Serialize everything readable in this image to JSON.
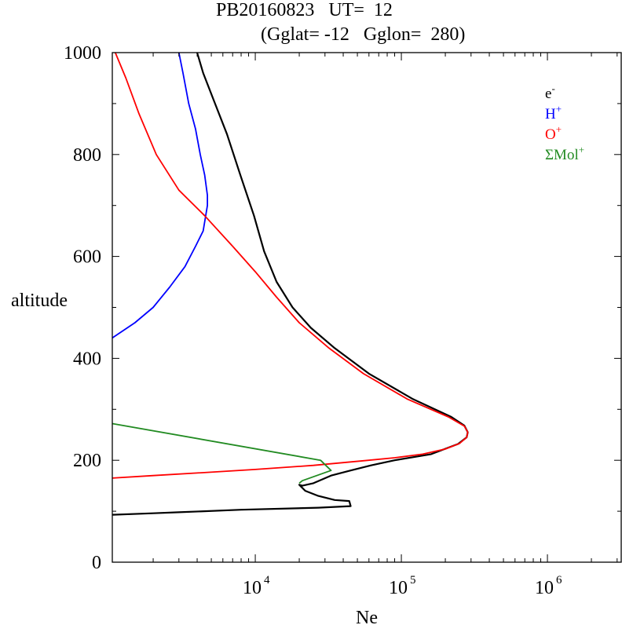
{
  "title_line1": "PB20160823   UT=  12",
  "title_line2": "(Gglat= -12   Gglon=  280)",
  "chart_data": {
    "type": "line",
    "xlabel": "Ne",
    "ylabel": "altitude",
    "xscale": "log",
    "xlim": [
      1050,
      3200000
    ],
    "ylim": [
      0,
      1000
    ],
    "x_tick_labels": [
      {
        "value": 10000,
        "base": "10",
        "exp": "4"
      },
      {
        "value": 100000,
        "base": "10",
        "exp": "5"
      },
      {
        "value": 1000000,
        "base": "10",
        "exp": "6"
      }
    ],
    "y_ticks": [
      0,
      200,
      400,
      600,
      800,
      1000
    ],
    "legend_position": "top-right",
    "series": [
      {
        "name": "e-",
        "label_base": "e",
        "label_sup": "-",
        "color": "#000000",
        "points": [
          [
            4000,
            1000
          ],
          [
            4400,
            960
          ],
          [
            5300,
            900
          ],
          [
            6400,
            840
          ],
          [
            7900,
            760
          ],
          [
            9800,
            680
          ],
          [
            11500,
            610
          ],
          [
            14000,
            550
          ],
          [
            18000,
            500
          ],
          [
            24000,
            460
          ],
          [
            35000,
            420
          ],
          [
            60000,
            370
          ],
          [
            120000,
            320
          ],
          [
            220000,
            285
          ],
          [
            270000,
            268
          ],
          [
            285000,
            255
          ],
          [
            280000,
            245
          ],
          [
            245000,
            232
          ],
          [
            160000,
            212
          ],
          [
            90000,
            200
          ],
          [
            62000,
            190
          ],
          [
            45000,
            180
          ],
          [
            33000,
            170
          ],
          [
            25000,
            155
          ],
          [
            21000,
            150
          ],
          [
            20000,
            152
          ],
          [
            22000,
            140
          ],
          [
            27000,
            130
          ],
          [
            35000,
            122
          ],
          [
            44000,
            120
          ],
          [
            45000,
            110
          ],
          [
            27000,
            107
          ],
          [
            8000,
            103
          ],
          [
            3000,
            98
          ],
          [
            2000,
            96
          ],
          [
            1050,
            93
          ]
        ]
      },
      {
        "name": "H+",
        "label_base": "H",
        "label_sup": "+",
        "color": "#0000ff",
        "points": [
          [
            3000,
            1000
          ],
          [
            3200,
            960
          ],
          [
            3500,
            900
          ],
          [
            3900,
            850
          ],
          [
            4200,
            800
          ],
          [
            4500,
            760
          ],
          [
            4700,
            720
          ],
          [
            4700,
            700
          ],
          [
            4400,
            650
          ],
          [
            3900,
            620
          ],
          [
            3300,
            580
          ],
          [
            2600,
            540
          ],
          [
            2000,
            500
          ],
          [
            1500,
            470
          ],
          [
            1050,
            440
          ]
        ]
      },
      {
        "name": "O+",
        "label_base": "O",
        "label_sup": "+",
        "color": "#ff0000",
        "points": [
          [
            1100,
            1000
          ],
          [
            1300,
            950
          ],
          [
            1600,
            880
          ],
          [
            2100,
            800
          ],
          [
            3000,
            730
          ],
          [
            4500,
            680
          ],
          [
            7000,
            620
          ],
          [
            10000,
            570
          ],
          [
            14000,
            520
          ],
          [
            20000,
            470
          ],
          [
            32000,
            420
          ],
          [
            55000,
            370
          ],
          [
            110000,
            320
          ],
          [
            210000,
            285
          ],
          [
            270000,
            267
          ],
          [
            285000,
            255
          ],
          [
            280000,
            245
          ],
          [
            250000,
            233
          ],
          [
            200000,
            222
          ],
          [
            140000,
            212
          ],
          [
            90000,
            205
          ],
          [
            55000,
            199
          ],
          [
            25000,
            190
          ],
          [
            10000,
            182
          ],
          [
            4000,
            175
          ],
          [
            2000,
            170
          ],
          [
            1050,
            165
          ]
        ]
      },
      {
        "name": "ΣMol+",
        "label_base": "ΣMol",
        "label_sup": "+",
        "color": "#228b22",
        "points": [
          [
            1050,
            272
          ],
          [
            28000,
            200
          ],
          [
            33000,
            180
          ],
          [
            21000,
            160
          ],
          [
            20000,
            155
          ]
        ]
      }
    ]
  }
}
